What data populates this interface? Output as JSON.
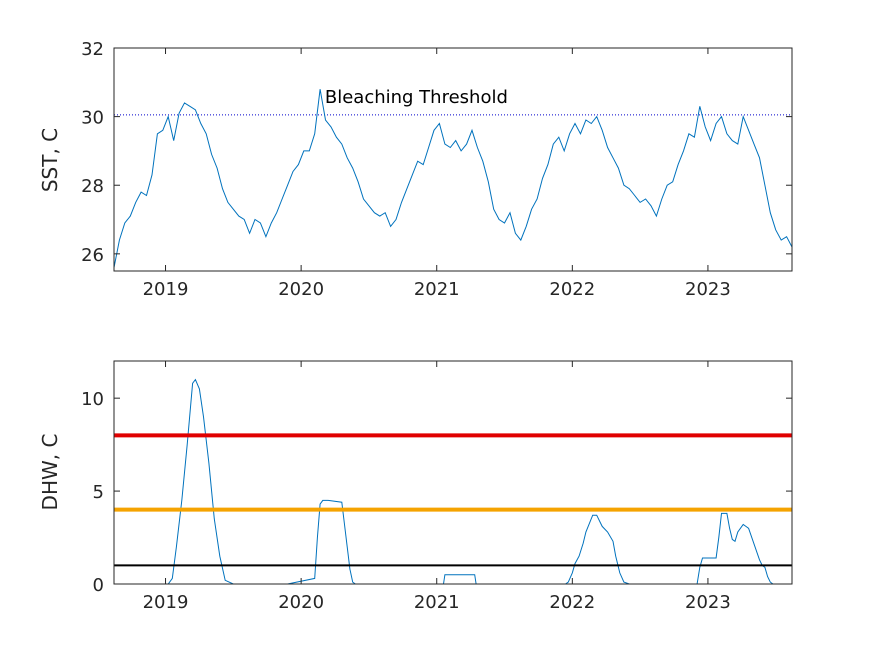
{
  "chart_data": [
    {
      "type": "line",
      "title": "",
      "xlabel": "",
      "ylabel": "SST, C",
      "xlim": [
        2018.62,
        2023.62
      ],
      "ylim": [
        25.5,
        32
      ],
      "xticks": [
        2019,
        2020,
        2021,
        2022,
        2023
      ],
      "xtick_labels": [
        "2019",
        "2020",
        "2021",
        "2022",
        "2023"
      ],
      "yticks": [
        26,
        28,
        30,
        32
      ],
      "ytick_labels": [
        "26",
        "28",
        "30",
        "32"
      ],
      "grid": false,
      "annotations": [
        {
          "text": "Bleaching Threshold",
          "x": 2020.85,
          "y": 30.4
        }
      ],
      "reference_lines": [
        {
          "y": 30.05,
          "color": "#0000cc",
          "style": "dotted"
        }
      ],
      "series": [
        {
          "color": "#0072bd",
          "x": [
            2018.62,
            2018.66,
            2018.7,
            2018.74,
            2018.78,
            2018.82,
            2018.86,
            2018.9,
            2018.94,
            2018.98,
            2019.02,
            2019.06,
            2019.1,
            2019.14,
            2019.18,
            2019.22,
            2019.26,
            2019.3,
            2019.34,
            2019.38,
            2019.42,
            2019.46,
            2019.5,
            2019.54,
            2019.58,
            2019.62,
            2019.66,
            2019.7,
            2019.74,
            2019.78,
            2019.82,
            2019.86,
            2019.9,
            2019.94,
            2019.98,
            2020.02,
            2020.06,
            2020.1,
            2020.14,
            2020.18,
            2020.22,
            2020.26,
            2020.3,
            2020.34,
            2020.38,
            2020.42,
            2020.46,
            2020.5,
            2020.54,
            2020.58,
            2020.62,
            2020.66,
            2020.7,
            2020.74,
            2020.78,
            2020.82,
            2020.86,
            2020.9,
            2020.94,
            2020.98,
            2021.02,
            2021.06,
            2021.1,
            2021.14,
            2021.18,
            2021.22,
            2021.26,
            2021.3,
            2021.34,
            2021.38,
            2021.42,
            2021.46,
            2021.5,
            2021.54,
            2021.58,
            2021.62,
            2021.66,
            2021.7,
            2021.74,
            2021.78,
            2021.82,
            2021.86,
            2021.9,
            2021.94,
            2021.98,
            2022.02,
            2022.06,
            2022.1,
            2022.14,
            2022.18,
            2022.22,
            2022.26,
            2022.3,
            2022.34,
            2022.38,
            2022.42,
            2022.46,
            2022.5,
            2022.54,
            2022.58,
            2022.62,
            2022.66,
            2022.7,
            2022.74,
            2022.78,
            2022.82,
            2022.86,
            2022.9,
            2022.94,
            2022.98,
            2023.02,
            2023.06,
            2023.1,
            2023.14,
            2023.18,
            2023.22,
            2023.26,
            2023.3,
            2023.34,
            2023.38,
            2023.42,
            2023.46,
            2023.5,
            2023.54,
            2023.58,
            2023.62
          ],
          "y": [
            25.6,
            26.4,
            26.9,
            27.1,
            27.5,
            27.8,
            27.7,
            28.3,
            29.5,
            29.6,
            30.0,
            29.3,
            30.1,
            30.4,
            30.3,
            30.2,
            29.8,
            29.5,
            28.9,
            28.5,
            27.9,
            27.5,
            27.3,
            27.1,
            27.0,
            26.6,
            27.0,
            26.9,
            26.5,
            26.9,
            27.2,
            27.6,
            28.0,
            28.4,
            28.6,
            29.0,
            29.0,
            29.5,
            30.8,
            29.9,
            29.7,
            29.4,
            29.2,
            28.8,
            28.5,
            28.1,
            27.6,
            27.4,
            27.2,
            27.1,
            27.2,
            26.8,
            27.0,
            27.5,
            27.9,
            28.3,
            28.7,
            28.6,
            29.1,
            29.6,
            29.8,
            29.2,
            29.1,
            29.3,
            29.0,
            29.2,
            29.6,
            29.1,
            28.7,
            28.1,
            27.3,
            27.0,
            26.9,
            27.2,
            26.6,
            26.4,
            26.8,
            27.3,
            27.6,
            28.2,
            28.6,
            29.2,
            29.4,
            29.0,
            29.5,
            29.8,
            29.5,
            29.9,
            29.8,
            30.0,
            29.6,
            29.1,
            28.8,
            28.5,
            28.0,
            27.9,
            27.7,
            27.5,
            27.6,
            27.4,
            27.1,
            27.6,
            28.0,
            28.1,
            28.6,
            29.0,
            29.5,
            29.4,
            30.3,
            29.7,
            29.3,
            29.8,
            30.0,
            29.5,
            29.3,
            29.2,
            30.0,
            29.6,
            29.2,
            28.8,
            28.0,
            27.2,
            26.7,
            26.4,
            26.5,
            26.2
          ]
        }
      ]
    },
    {
      "type": "line",
      "title": "",
      "xlabel": "",
      "ylabel": "DHW, C",
      "xlim": [
        2018.62,
        2023.62
      ],
      "ylim": [
        0,
        12
      ],
      "xticks": [
        2019,
        2020,
        2021,
        2022,
        2023
      ],
      "xtick_labels": [
        "2019",
        "2020",
        "2021",
        "2022",
        "2023"
      ],
      "yticks": [
        0,
        5,
        10
      ],
      "ytick_labels": [
        "0",
        "5",
        "10"
      ],
      "grid": false,
      "reference_lines": [
        {
          "y": 8,
          "color": "#e00000",
          "style": "solid"
        },
        {
          "y": 4,
          "color": "#f5a300",
          "style": "solid"
        },
        {
          "y": 1,
          "color": "#000000",
          "style": "solid"
        }
      ],
      "series": [
        {
          "color": "#0072bd",
          "x": [
            2018.62,
            2019.02,
            2019.05,
            2019.08,
            2019.12,
            2019.16,
            2019.2,
            2019.22,
            2019.25,
            2019.28,
            2019.32,
            2019.36,
            2019.4,
            2019.44,
            2019.5,
            2019.9,
            2020.1,
            2020.12,
            2020.14,
            2020.16,
            2020.18,
            2020.2,
            2020.3,
            2020.32,
            2020.34,
            2020.36,
            2020.38,
            2020.4,
            2021.05,
            2021.06,
            2021.28,
            2021.29,
            2021.95,
            2021.97,
            2022.0,
            2022.02,
            2022.05,
            2022.08,
            2022.1,
            2022.15,
            2022.18,
            2022.22,
            2022.26,
            2022.3,
            2022.32,
            2022.35,
            2022.38,
            2022.42,
            2022.92,
            2022.94,
            2022.96,
            2023.06,
            2023.08,
            2023.1,
            2023.14,
            2023.16,
            2023.18,
            2023.2,
            2023.22,
            2023.26,
            2023.28,
            2023.3,
            2023.38,
            2023.4,
            2023.42,
            2023.44,
            2023.46,
            2023.48,
            2023.62
          ],
          "y": [
            0,
            0,
            0.3,
            2.0,
            4.5,
            7.5,
            10.8,
            11.0,
            10.5,
            9.0,
            6.5,
            3.5,
            1.5,
            0.2,
            0,
            0,
            0.3,
            2.5,
            4.3,
            4.5,
            4.5,
            4.5,
            4.4,
            3.2,
            2.0,
            0.8,
            0.1,
            0,
            0,
            0.5,
            0.5,
            0,
            0,
            0.1,
            0.6,
            1.1,
            1.5,
            2.2,
            2.8,
            3.7,
            3.7,
            3.1,
            2.8,
            2.3,
            1.5,
            0.6,
            0.1,
            0,
            0,
            0.9,
            1.4,
            1.4,
            2.5,
            3.8,
            3.8,
            3.0,
            2.4,
            2.3,
            2.8,
            3.2,
            3.1,
            3.0,
            1.3,
            1.0,
            0.9,
            0.4,
            0.1,
            0,
            0
          ]
        }
      ]
    }
  ]
}
